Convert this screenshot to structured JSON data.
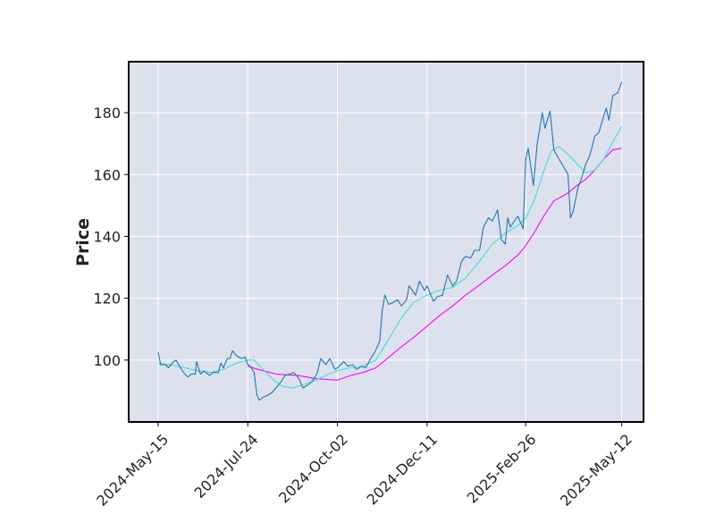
{
  "chart_data": {
    "type": "line",
    "title": "",
    "xlabel": "",
    "ylabel": "Price",
    "ylim": [
      80.0,
      196.5
    ],
    "xlim": [
      "2024-04-22",
      "2025-05-29"
    ],
    "grid": true,
    "legend": "none",
    "x_ticks": [
      "2024-May-15",
      "2024-Jul-24",
      "2024-Oct-02",
      "2024-Dec-11",
      "2025-Feb-26",
      "2025-May-12"
    ],
    "y_ticks": [
      100,
      120,
      140,
      160,
      180
    ],
    "colors": {
      "background": "#ffffff",
      "plot_background": "#dde1ee",
      "grid": "#ffffff",
      "axis": "#000000",
      "price": "#1f77b4",
      "ma_short": "#40e0d0",
      "ma_long": "#ff00ff"
    },
    "series": [
      {
        "key": "price",
        "points": [
          [
            "2024-05-15",
            102.5
          ],
          [
            "2024-05-17",
            98.5
          ],
          [
            "2024-05-21",
            98.5
          ],
          [
            "2024-05-23",
            97.5
          ],
          [
            "2024-05-27",
            99.5
          ],
          [
            "2024-05-29",
            100.0
          ],
          [
            "2024-05-31",
            98.5
          ],
          [
            "2024-06-03",
            96.5
          ],
          [
            "2024-06-05",
            95.5
          ],
          [
            "2024-06-07",
            94.5
          ],
          [
            "2024-06-10",
            95.5
          ],
          [
            "2024-06-13",
            95.5
          ],
          [
            "2024-06-14",
            99.5
          ],
          [
            "2024-06-17",
            95.5
          ],
          [
            "2024-06-20",
            96.5
          ],
          [
            "2024-06-24",
            95.0
          ],
          [
            "2024-06-27",
            96.0
          ],
          [
            "2024-07-01",
            96.0
          ],
          [
            "2024-07-03",
            99.0
          ],
          [
            "2024-07-05",
            97.5
          ],
          [
            "2024-07-08",
            100.5
          ],
          [
            "2024-07-10",
            100.5
          ],
          [
            "2024-07-12",
            103.0
          ],
          [
            "2024-07-15",
            101.5
          ],
          [
            "2024-07-17",
            101.0
          ],
          [
            "2024-07-19",
            100.5
          ],
          [
            "2024-07-22",
            101.0
          ],
          [
            "2024-07-24",
            98.5
          ],
          [
            "2024-07-26",
            98.0
          ],
          [
            "2024-07-29",
            96.0
          ],
          [
            "2024-07-31",
            89.0
          ],
          [
            "2024-08-02",
            87.0
          ],
          [
            "2024-08-05",
            88.0
          ],
          [
            "2024-08-08",
            88.5
          ],
          [
            "2024-08-12",
            89.5
          ],
          [
            "2024-08-15",
            91.0
          ],
          [
            "2024-08-19",
            93.0
          ],
          [
            "2024-08-22",
            95.0
          ],
          [
            "2024-08-26",
            95.5
          ],
          [
            "2024-08-29",
            96.0
          ],
          [
            "2024-09-02",
            94.0
          ],
          [
            "2024-09-05",
            91.0
          ],
          [
            "2024-09-09",
            92.0
          ],
          [
            "2024-09-12",
            93.0
          ],
          [
            "2024-09-16",
            95.5
          ],
          [
            "2024-09-19",
            100.5
          ],
          [
            "2024-09-23",
            98.5
          ],
          [
            "2024-09-26",
            100.5
          ],
          [
            "2024-09-30",
            97.0
          ],
          [
            "2024-10-02",
            97.5
          ],
          [
            "2024-10-07",
            99.5
          ],
          [
            "2024-10-10",
            98.0
          ],
          [
            "2024-10-14",
            98.5
          ],
          [
            "2024-10-17",
            97.0
          ],
          [
            "2024-10-21",
            98.0
          ],
          [
            "2024-10-24",
            97.5
          ],
          [
            "2024-10-28",
            100.5
          ],
          [
            "2024-10-31",
            102.5
          ],
          [
            "2024-11-04",
            106.0
          ],
          [
            "2024-11-06",
            116.0
          ],
          [
            "2024-11-08",
            121.0
          ],
          [
            "2024-11-11",
            118.0
          ],
          [
            "2024-11-14",
            118.5
          ],
          [
            "2024-11-18",
            119.5
          ],
          [
            "2024-11-21",
            117.5
          ],
          [
            "2024-11-25",
            119.5
          ],
          [
            "2024-11-27",
            124.0
          ],
          [
            "2024-12-02",
            121.0
          ],
          [
            "2024-12-05",
            125.5
          ],
          [
            "2024-12-09",
            122.5
          ],
          [
            "2024-12-11",
            124.0
          ],
          [
            "2024-12-16",
            119.0
          ],
          [
            "2024-12-19",
            120.5
          ],
          [
            "2024-12-23",
            121.0
          ],
          [
            "2024-12-27",
            127.5
          ],
          [
            "2024-12-31",
            124.0
          ],
          [
            "2025-01-03",
            125.5
          ],
          [
            "2025-01-07",
            132.0
          ],
          [
            "2025-01-10",
            133.5
          ],
          [
            "2025-01-14",
            133.0
          ],
          [
            "2025-01-17",
            135.5
          ],
          [
            "2025-01-21",
            135.5
          ],
          [
            "2025-01-24",
            143.0
          ],
          [
            "2025-01-28",
            146.0
          ],
          [
            "2025-01-31",
            145.0
          ],
          [
            "2025-02-04",
            148.5
          ],
          [
            "2025-02-07",
            139.0
          ],
          [
            "2025-02-10",
            137.5
          ],
          [
            "2025-02-12",
            146.0
          ],
          [
            "2025-02-14",
            143.0
          ],
          [
            "2025-02-18",
            145.5
          ],
          [
            "2025-02-20",
            146.5
          ],
          [
            "2025-02-24",
            142.5
          ],
          [
            "2025-02-26",
            165.0
          ],
          [
            "2025-02-28",
            168.5
          ],
          [
            "2025-03-04",
            156.5
          ],
          [
            "2025-03-07",
            170.0
          ],
          [
            "2025-03-11",
            180.0
          ],
          [
            "2025-03-13",
            175.0
          ],
          [
            "2025-03-17",
            180.5
          ],
          [
            "2025-03-20",
            168.0
          ],
          [
            "2025-03-24",
            165.0
          ],
          [
            "2025-03-27",
            163.0
          ],
          [
            "2025-03-31",
            160.0
          ],
          [
            "2025-04-02",
            146.0
          ],
          [
            "2025-04-04",
            148.0
          ],
          [
            "2025-04-08",
            156.0
          ],
          [
            "2025-04-10",
            158.0
          ],
          [
            "2025-04-14",
            163.5
          ],
          [
            "2025-04-17",
            166.0
          ],
          [
            "2025-04-21",
            172.5
          ],
          [
            "2025-04-24",
            173.5
          ],
          [
            "2025-04-28",
            179.0
          ],
          [
            "2025-04-30",
            181.5
          ],
          [
            "2025-05-02",
            177.5
          ],
          [
            "2025-05-05",
            185.5
          ],
          [
            "2025-05-07",
            186.0
          ],
          [
            "2025-05-09",
            186.5
          ],
          [
            "2025-05-12",
            190.0
          ]
        ]
      },
      {
        "key": "ma_short",
        "points": [
          [
            "2024-05-15",
            99.0
          ],
          [
            "2024-05-25",
            98.5
          ],
          [
            "2024-06-05",
            97.5
          ],
          [
            "2024-06-15",
            96.5
          ],
          [
            "2024-06-25",
            96.0
          ],
          [
            "2024-07-05",
            97.0
          ],
          [
            "2024-07-15",
            99.0
          ],
          [
            "2024-07-24",
            100.0
          ],
          [
            "2024-07-29",
            100.0
          ],
          [
            "2024-08-05",
            97.0
          ],
          [
            "2024-08-12",
            94.0
          ],
          [
            "2024-08-20",
            91.5
          ],
          [
            "2024-08-28",
            91.0
          ],
          [
            "2024-09-05",
            92.0
          ],
          [
            "2024-09-15",
            93.5
          ],
          [
            "2024-09-25",
            95.5
          ],
          [
            "2024-10-02",
            96.5
          ],
          [
            "2024-10-12",
            97.5
          ],
          [
            "2024-10-22",
            98.0
          ],
          [
            "2024-11-01",
            100.0
          ],
          [
            "2024-11-10",
            106.0
          ],
          [
            "2024-11-20",
            113.0
          ],
          [
            "2024-11-30",
            118.5
          ],
          [
            "2024-12-11",
            121.0
          ],
          [
            "2024-12-20",
            122.5
          ],
          [
            "2024-12-31",
            123.5
          ],
          [
            "2025-01-10",
            126.5
          ],
          [
            "2025-01-20",
            131.5
          ],
          [
            "2025-01-31",
            137.5
          ],
          [
            "2025-02-10",
            141.0
          ],
          [
            "2025-02-20",
            143.5
          ],
          [
            "2025-02-26",
            146.0
          ],
          [
            "2025-03-05",
            152.0
          ],
          [
            "2025-03-12",
            161.0
          ],
          [
            "2025-03-18",
            167.5
          ],
          [
            "2025-03-24",
            169.0
          ],
          [
            "2025-03-31",
            166.5
          ],
          [
            "2025-04-07",
            163.5
          ],
          [
            "2025-04-14",
            160.5
          ],
          [
            "2025-04-21",
            161.5
          ],
          [
            "2025-04-28",
            165.0
          ],
          [
            "2025-05-05",
            170.5
          ],
          [
            "2025-05-12",
            175.5
          ]
        ]
      },
      {
        "key": "ma_long",
        "points": [
          [
            "2024-07-24",
            98.0
          ],
          [
            "2024-08-01",
            97.0
          ],
          [
            "2024-08-15",
            95.5
          ],
          [
            "2024-09-01",
            95.0
          ],
          [
            "2024-09-15",
            94.0
          ],
          [
            "2024-10-02",
            93.5
          ],
          [
            "2024-10-12",
            95.0
          ],
          [
            "2024-10-22",
            96.0
          ],
          [
            "2024-11-01",
            97.5
          ],
          [
            "2024-11-10",
            100.5
          ],
          [
            "2024-11-20",
            104.0
          ],
          [
            "2024-12-01",
            107.5
          ],
          [
            "2024-12-11",
            111.0
          ],
          [
            "2024-12-21",
            114.5
          ],
          [
            "2024-12-31",
            117.5
          ],
          [
            "2025-01-10",
            121.0
          ],
          [
            "2025-01-20",
            124.0
          ],
          [
            "2025-01-31",
            127.5
          ],
          [
            "2025-02-10",
            130.5
          ],
          [
            "2025-02-20",
            134.0
          ],
          [
            "2025-02-26",
            137.0
          ],
          [
            "2025-03-05",
            141.5
          ],
          [
            "2025-03-12",
            146.5
          ],
          [
            "2025-03-20",
            151.5
          ],
          [
            "2025-03-31",
            154.0
          ],
          [
            "2025-04-07",
            156.5
          ],
          [
            "2025-04-14",
            158.5
          ],
          [
            "2025-04-21",
            161.5
          ],
          [
            "2025-04-28",
            165.0
          ],
          [
            "2025-05-05",
            168.0
          ],
          [
            "2025-05-12",
            168.5
          ]
        ]
      }
    ]
  }
}
